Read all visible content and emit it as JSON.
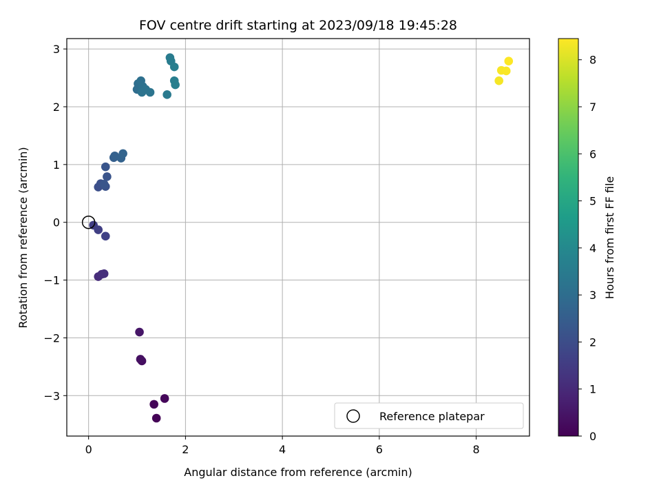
{
  "chart_data": {
    "type": "scatter",
    "title": "FOV centre drift starting at 2023/09/18 19:45:28",
    "xlabel": "Angular distance from reference (arcmin)",
    "ylabel": "Rotation from reference (arcmin)",
    "xlim": [
      -0.45,
      9.1
    ],
    "ylim": [
      -3.7,
      3.18
    ],
    "xticks": [
      0,
      2,
      4,
      6,
      8
    ],
    "yticks": [
      -3,
      -2,
      -1,
      0,
      1,
      2,
      3
    ],
    "grid": true,
    "colormap": "viridis",
    "colorbar": {
      "label": "Hours from first FF file",
      "range": [
        0,
        8.45
      ],
      "ticks": [
        0,
        1,
        2,
        3,
        4,
        5,
        6,
        7,
        8
      ]
    },
    "legend": {
      "position": "lower-right",
      "entries": [
        "Reference platepar"
      ]
    },
    "reference_point": {
      "x": 0,
      "y": 0
    },
    "points": [
      {
        "x": 1.4,
        "y": -3.39,
        "h": 0.05
      },
      {
        "x": 1.35,
        "y": -3.15,
        "h": 0.1
      },
      {
        "x": 1.57,
        "y": -3.05,
        "h": 0.15
      },
      {
        "x": 1.1,
        "y": -2.4,
        "h": 0.3
      },
      {
        "x": 1.07,
        "y": -2.37,
        "h": 0.35
      },
      {
        "x": 1.05,
        "y": -1.9,
        "h": 0.5
      },
      {
        "x": 0.2,
        "y": -0.94,
        "h": 1.05
      },
      {
        "x": 0.27,
        "y": -0.9,
        "h": 1.1
      },
      {
        "x": 0.32,
        "y": -0.89,
        "h": 1.15
      },
      {
        "x": 0.1,
        "y": -0.05,
        "h": 1.55
      },
      {
        "x": 0.2,
        "y": -0.13,
        "h": 1.6
      },
      {
        "x": 0.35,
        "y": -0.24,
        "h": 1.65
      },
      {
        "x": 0.2,
        "y": 0.61,
        "h": 2.05
      },
      {
        "x": 0.25,
        "y": 0.67,
        "h": 2.1
      },
      {
        "x": 0.35,
        "y": 0.62,
        "h": 2.15
      },
      {
        "x": 0.38,
        "y": 0.79,
        "h": 2.2
      },
      {
        "x": 0.35,
        "y": 0.96,
        "h": 2.25
      },
      {
        "x": 0.32,
        "y": 0.66,
        "h": 2.25
      },
      {
        "x": 0.52,
        "y": 1.12,
        "h": 2.55
      },
      {
        "x": 0.54,
        "y": 1.15,
        "h": 2.6
      },
      {
        "x": 0.67,
        "y": 1.11,
        "h": 2.65
      },
      {
        "x": 0.71,
        "y": 1.19,
        "h": 2.7
      },
      {
        "x": 1.0,
        "y": 2.3,
        "h": 3.0
      },
      {
        "x": 1.02,
        "y": 2.4,
        "h": 3.05
      },
      {
        "x": 1.08,
        "y": 2.45,
        "h": 3.1
      },
      {
        "x": 1.1,
        "y": 2.28,
        "h": 3.15
      },
      {
        "x": 1.12,
        "y": 2.35,
        "h": 3.15
      },
      {
        "x": 1.18,
        "y": 2.3,
        "h": 3.2
      },
      {
        "x": 1.27,
        "y": 2.25,
        "h": 3.25
      },
      {
        "x": 1.1,
        "y": 2.25,
        "h": 3.2
      },
      {
        "x": 1.62,
        "y": 2.21,
        "h": 3.45
      },
      {
        "x": 1.68,
        "y": 2.85,
        "h": 3.5
      },
      {
        "x": 1.7,
        "y": 2.79,
        "h": 3.55
      },
      {
        "x": 1.77,
        "y": 2.69,
        "h": 3.6
      },
      {
        "x": 1.77,
        "y": 2.45,
        "h": 3.6
      },
      {
        "x": 1.79,
        "y": 2.38,
        "h": 3.65
      },
      {
        "x": 8.47,
        "y": 2.45,
        "h": 8.35
      },
      {
        "x": 8.52,
        "y": 2.63,
        "h": 8.38
      },
      {
        "x": 8.62,
        "y": 2.62,
        "h": 8.4
      },
      {
        "x": 8.67,
        "y": 2.79,
        "h": 8.45
      }
    ]
  }
}
